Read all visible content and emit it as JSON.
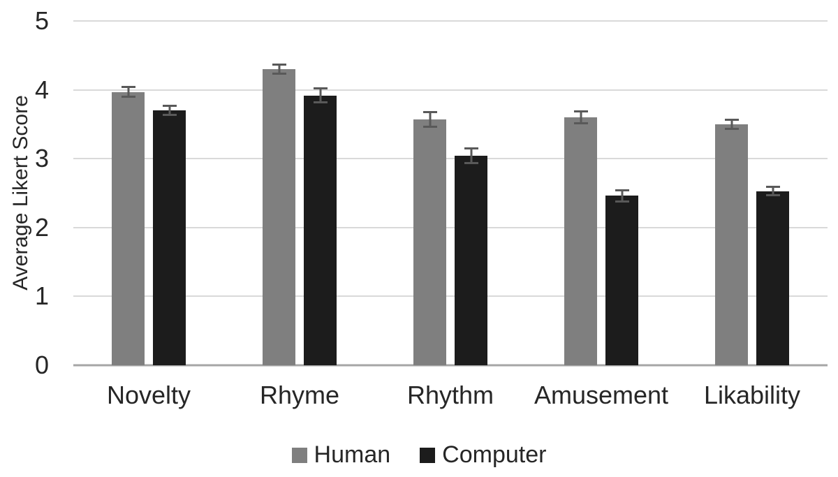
{
  "chart_data": {
    "type": "bar",
    "title": "",
    "categories": [
      "Novelty",
      "Rhyme",
      "Rhythm",
      "Amusement",
      "Likability"
    ],
    "series": [
      {
        "name": "Human",
        "color": "#7f7f7f",
        "values": [
          3.97,
          4.3,
          3.57,
          3.6,
          3.5
        ],
        "errors": [
          0.09,
          0.08,
          0.12,
          0.1,
          0.08
        ]
      },
      {
        "name": "Computer",
        "color": "#1c1c1c",
        "values": [
          3.7,
          3.92,
          3.04,
          2.46,
          2.53
        ],
        "errors": [
          0.08,
          0.12,
          0.12,
          0.1,
          0.08
        ]
      }
    ],
    "xlabel": "",
    "ylabel": "Average Likert Score",
    "ylim": [
      0,
      5
    ],
    "yticks": [
      0,
      1,
      2,
      3,
      4,
      5
    ],
    "grid": true,
    "legend_position": "bottom",
    "error_bar_color": "#595959",
    "gridline_color": "#d9d9d9",
    "axis_line_color": "#a6a6a6",
    "text_color": "#262626"
  }
}
